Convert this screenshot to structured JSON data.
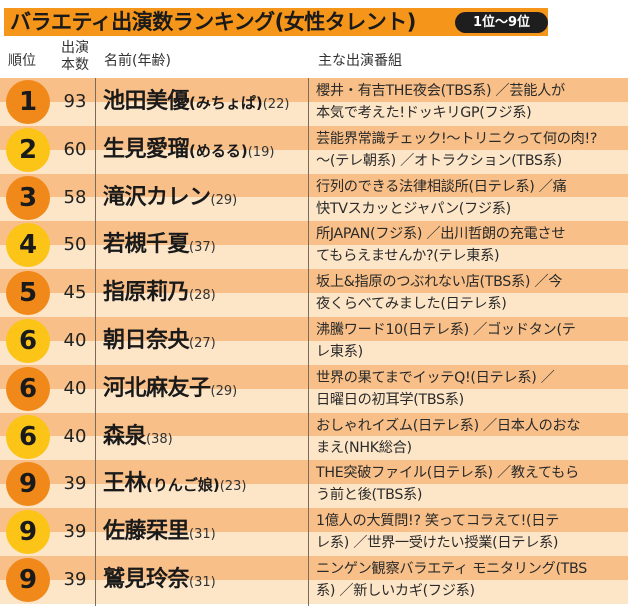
{
  "title": {
    "text": "バラエティ出演数ランキング(女性タレント)",
    "badge": "1位〜9位",
    "accent_color": "#f5951a"
  },
  "header": {
    "rank": "順位",
    "count_line1": "出演",
    "count_line2": "本数",
    "name": "名前(年齢)",
    "programs": "主な出演番組"
  },
  "colors": {
    "band_dark": "#f8c088",
    "band_light": "#fde6c8",
    "badge_orange": "#f0881a",
    "badge_yellow": "#fbc417"
  },
  "rows": [
    {
      "rank": "1",
      "badge_color": "orange",
      "count": "93",
      "name": "池田美優",
      "kana": "(みちょぱ)",
      "age": "(22)",
      "programs_line1": "櫻井・有吉THE夜会(TBS系) ／芸能人が",
      "programs_line2": "本気で考えた!ドッキリGP(フジ系)"
    },
    {
      "rank": "2",
      "badge_color": "yellow",
      "count": "60",
      "name": "生見愛瑠",
      "kana": "(めるる)",
      "age": "(19)",
      "programs_line1": "芸能界常識チェック!〜トリニクって何の肉!?",
      "programs_line2": "〜(テレ朝系) ／オトラクション(TBS系)"
    },
    {
      "rank": "3",
      "badge_color": "orange",
      "count": "58",
      "name": "滝沢カレン",
      "kana": "",
      "age": "(29)",
      "programs_line1": "行列のできる法律相談所(日テレ系) ／痛",
      "programs_line2": "快TVスカッとジャパン(フジ系)"
    },
    {
      "rank": "4",
      "badge_color": "yellow",
      "count": "50",
      "name": "若槻千夏",
      "kana": "",
      "age": "(37)",
      "programs_line1": "所JAPAN(フジ系) ／出川哲朗の充電させ",
      "programs_line2": "てもらえませんか?(テレ東系)"
    },
    {
      "rank": "5",
      "badge_color": "orange",
      "count": "45",
      "name": "指原莉乃",
      "kana": "",
      "age": "(28)",
      "programs_line1": "坂上&指原のつぶれない店(TBS系) ／今",
      "programs_line2": "夜くらべてみました(日テレ系)"
    },
    {
      "rank": "6",
      "badge_color": "yellow",
      "count": "40",
      "name": "朝日奈央",
      "kana": "",
      "age": "(27)",
      "programs_line1": "沸騰ワード10(日テレ系) ／ゴッドタン(テ",
      "programs_line2": "レ東系)"
    },
    {
      "rank": "6",
      "badge_color": "orange",
      "count": "40",
      "name": "河北麻友子",
      "kana": "",
      "age": "(29)",
      "programs_line1": "世界の果てまでイッテQ!(日テレ系) ／",
      "programs_line2": "日曜日の初耳学(TBS系)"
    },
    {
      "rank": "6",
      "badge_color": "yellow",
      "count": "40",
      "name": "森泉",
      "kana": "",
      "age": "(38)",
      "programs_line1": "おしゃれイズム(日テレ系) ／日本人のおな",
      "programs_line2": "まえ(NHK総合)"
    },
    {
      "rank": "9",
      "badge_color": "orange",
      "count": "39",
      "name": "王林",
      "kana": "(りんご娘)",
      "age": "(23)",
      "programs_line1": "THE突破ファイル(日テレ系) ／教えてもら",
      "programs_line2": "う前と後(TBS系)"
    },
    {
      "rank": "9",
      "badge_color": "yellow",
      "count": "39",
      "name": "佐藤栞里",
      "kana": "",
      "age": "(31)",
      "programs_line1": "1億人の大質問!? 笑ってコラえて!(日テ",
      "programs_line2": "レ系) ／世界一受けたい授業(日テレ系)"
    },
    {
      "rank": "9",
      "badge_color": "orange",
      "count": "39",
      "name": "鷲見玲奈",
      "kana": "",
      "age": "(31)",
      "programs_line1": "ニンゲン観察バラエティ モニタリング(TBS",
      "programs_line2": "系) ／新しいカギ(フジ系)"
    }
  ]
}
